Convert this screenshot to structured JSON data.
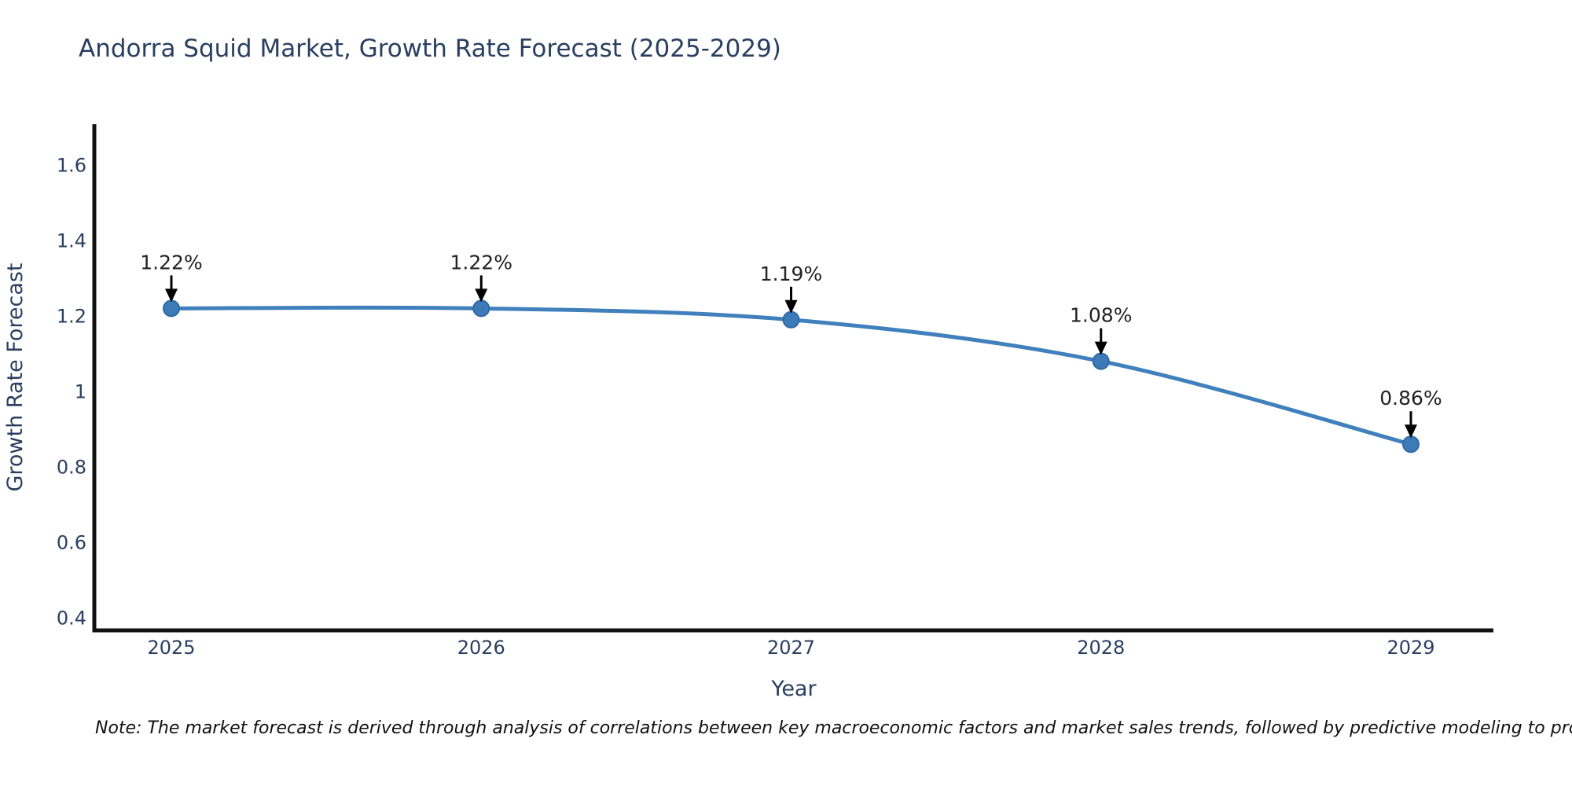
{
  "title": "Andorra Squid Market, Growth Rate Forecast (2025-2029)",
  "note": "Note: The market forecast is derived through analysis of correlations between key macroeconomic factors and market sales trends, followed by predictive modeling to project future sales",
  "chart_data": {
    "type": "line",
    "title": "Andorra Squid Market, Growth Rate Forecast (2025-2029)",
    "xlabel": "Year",
    "ylabel": "Growth Rate Forecast",
    "x": [
      2025,
      2026,
      2027,
      2028,
      2029
    ],
    "series": [
      {
        "name": "Growth Rate Forecast",
        "values": [
          1.22,
          1.22,
          1.19,
          1.08,
          0.86
        ]
      }
    ],
    "annotations": [
      "1.22%",
      "1.22%",
      "1.19%",
      "1.08%",
      "0.86%"
    ],
    "x_tick_labels": [
      "2025",
      "2026",
      "2027",
      "2028",
      "2029"
    ],
    "y_ticks": [
      1.6,
      1.4,
      1.2,
      1,
      0.8,
      0.6,
      0.4
    ],
    "y_tick_labels": [
      "1.6",
      "1.4",
      "1.2",
      "1",
      "0.8",
      "0.6",
      "0.4"
    ],
    "ylim": [
      0.367,
      1.708
    ],
    "grid": false,
    "legend": "none",
    "line_shape": "spline",
    "colors": {
      "line": "#4080bd",
      "marker": "#3d7ab8",
      "marker_edge": "#2f6aa3",
      "axis": "#111111",
      "tick_text": "#2a3f5f",
      "annotation_text": "#222222",
      "arrow": "#000000",
      "background": "#ffffff"
    }
  }
}
